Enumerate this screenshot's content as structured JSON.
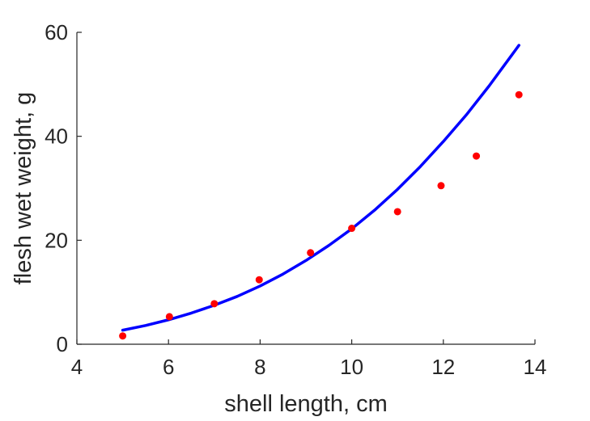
{
  "chart_data": {
    "type": "scatter",
    "title": "",
    "xlabel": "shell length, cm",
    "ylabel": "flesh wet weight, g",
    "xlim": [
      4,
      14
    ],
    "ylim": [
      0,
      60
    ],
    "x_ticks": [
      4,
      6,
      8,
      10,
      12,
      14
    ],
    "y_ticks": [
      0,
      20,
      40,
      60
    ],
    "x_tick_labels": [
      "4",
      "6",
      "8",
      "10",
      "12",
      "14"
    ],
    "y_tick_labels": [
      "0",
      "20",
      "40",
      "60"
    ],
    "grid": false,
    "legend": "none",
    "series": [
      {
        "type": "scatter",
        "color": "#ff0000",
        "x": [
          5.0,
          6.02,
          7.0,
          7.98,
          9.1,
          10.0,
          11.0,
          11.95,
          12.72,
          13.65
        ],
        "y": [
          1.6,
          5.3,
          7.8,
          12.4,
          17.6,
          22.3,
          25.5,
          30.5,
          36.2,
          48.0
        ]
      },
      {
        "type": "line",
        "color": "#0000ff",
        "x": [
          5.0,
          5.5,
          6.0,
          6.5,
          7.0,
          7.5,
          8.0,
          8.5,
          9.0,
          9.5,
          10.0,
          10.5,
          11.0,
          11.5,
          12.0,
          12.5,
          13.0,
          13.5,
          13.65
        ],
        "y": [
          2.7,
          3.6,
          4.7,
          6.0,
          7.5,
          9.2,
          11.2,
          13.5,
          16.1,
          19.0,
          22.2,
          25.8,
          29.8,
          34.2,
          39.0,
          44.1,
          49.7,
          55.7,
          57.5
        ]
      }
    ]
  }
}
